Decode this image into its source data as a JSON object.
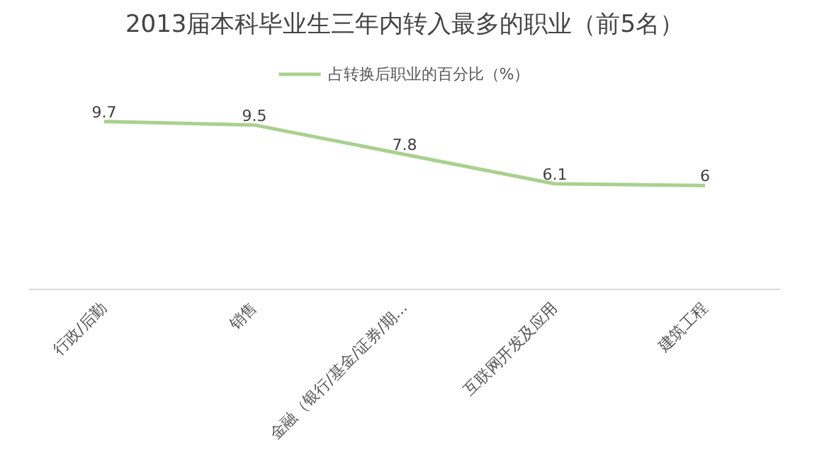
{
  "chart_data": {
    "type": "line",
    "title": "2013届本科毕业生三年内转入最多的职业（前5名）",
    "categories": [
      "行政/后勤",
      "销售",
      "金融（银行/基金/证券/期...",
      "互联网开发及应用",
      "建筑工程"
    ],
    "series": [
      {
        "name": "占转换后职业的百分比（%）",
        "color": "#a9d18e",
        "values": [
          9.7,
          9.5,
          7.8,
          6.1,
          6
        ]
      }
    ],
    "data_labels": true,
    "legend": "top",
    "grid": false,
    "line_style": "solid",
    "tick_labels": "x"
  }
}
